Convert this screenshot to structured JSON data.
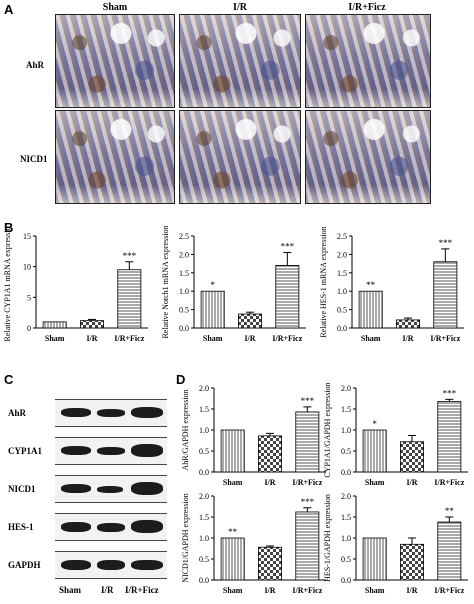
{
  "panels": {
    "a": "A",
    "b": "B",
    "c": "C",
    "d": "D"
  },
  "micrographs": {
    "columns": [
      "Sham",
      "I/R",
      "I/R+Ficz"
    ],
    "rows": [
      "AhR",
      "NICD1"
    ]
  },
  "western_blot": {
    "proteins": [
      "AhR",
      "CYP1A1",
      "NICD1",
      "HES-1",
      "GAPDH"
    ],
    "lanes": [
      "Sham",
      "I/R",
      "I/R+Ficz"
    ]
  },
  "chart_data": [
    {
      "type": "bar",
      "panel": "B",
      "categories": [
        "Sham",
        "I/R",
        "I/R+Ficz"
      ],
      "values": [
        1.0,
        1.2,
        9.5
      ],
      "errors": [
        0,
        0.2,
        1.3
      ],
      "annotations": [
        "",
        "",
        "***"
      ],
      "ylabel": "Relative CYP1A1 mRNA expression",
      "ylim": [
        0,
        15
      ],
      "yticks": [
        "0",
        "5",
        "10",
        "15"
      ]
    },
    {
      "type": "bar",
      "panel": "B",
      "categories": [
        "Sham",
        "I/R",
        "I/R+Ficz"
      ],
      "values": [
        1.0,
        0.38,
        1.7
      ],
      "errors": [
        0,
        0.05,
        0.35
      ],
      "annotations": [
        "*",
        "",
        "***"
      ],
      "ylabel": "Relative Notch1 mRNA expression",
      "ylim": [
        0,
        2.5
      ],
      "yticks": [
        "0.0",
        "0.5",
        "1.0",
        "1.5",
        "2.0",
        "2.5"
      ]
    },
    {
      "type": "bar",
      "panel": "B",
      "categories": [
        "Sham",
        "I/R",
        "I/R+Ficz"
      ],
      "values": [
        1.0,
        0.22,
        1.8
      ],
      "errors": [
        0,
        0.05,
        0.35
      ],
      "annotations": [
        "**",
        "",
        "***"
      ],
      "ylabel": "Relative HES-1 mRNA expression",
      "ylim": [
        0,
        2.5
      ],
      "yticks": [
        "0.0",
        "0.5",
        "1.0",
        "1.5",
        "2.0",
        "2.5"
      ]
    },
    {
      "type": "bar",
      "panel": "D",
      "categories": [
        "Sham",
        "I/R",
        "I/R+Ficz"
      ],
      "values": [
        1.0,
        0.86,
        1.43
      ],
      "errors": [
        0,
        0.06,
        0.12
      ],
      "annotations": [
        "",
        "",
        "***"
      ],
      "ylabel": "AhR/GAPDH expression",
      "ylim": [
        0,
        2.0
      ],
      "yticks": [
        "0.0",
        "0.5",
        "1.0",
        "1.5",
        "2.0"
      ]
    },
    {
      "type": "bar",
      "panel": "D",
      "categories": [
        "Sham",
        "I/R",
        "I/R+Ficz"
      ],
      "values": [
        1.0,
        0.72,
        1.68
      ],
      "errors": [
        0,
        0.15,
        0.05
      ],
      "annotations": [
        "*",
        "",
        "***"
      ],
      "ylabel": "CYP1A1/GAPDH expression",
      "ylim": [
        0,
        2.0
      ],
      "yticks": [
        "0.0",
        "0.5",
        "1.0",
        "1.5",
        "2.0"
      ]
    },
    {
      "type": "bar",
      "panel": "D",
      "categories": [
        "Sham",
        "I/R",
        "I/R+Ficz"
      ],
      "values": [
        1.0,
        0.78,
        1.62
      ],
      "errors": [
        0,
        0.03,
        0.1
      ],
      "annotations": [
        "**",
        "",
        "***"
      ],
      "ylabel": "NICD1/GAPDH expression",
      "ylim": [
        0,
        2.0
      ],
      "yticks": [
        "0.0",
        "0.5",
        "1.0",
        "1.5",
        "2.0"
      ]
    },
    {
      "type": "bar",
      "panel": "D",
      "categories": [
        "Sham",
        "I/R",
        "I/R+Ficz"
      ],
      "values": [
        1.0,
        0.85,
        1.38
      ],
      "errors": [
        0,
        0.15,
        0.12
      ],
      "annotations": [
        "",
        "",
        "**"
      ],
      "ylabel": "HES-1/GAPDH expression",
      "ylim": [
        0,
        2.0
      ],
      "yticks": [
        "0.0",
        "0.5",
        "1.0",
        "1.5",
        "2.0"
      ]
    }
  ]
}
